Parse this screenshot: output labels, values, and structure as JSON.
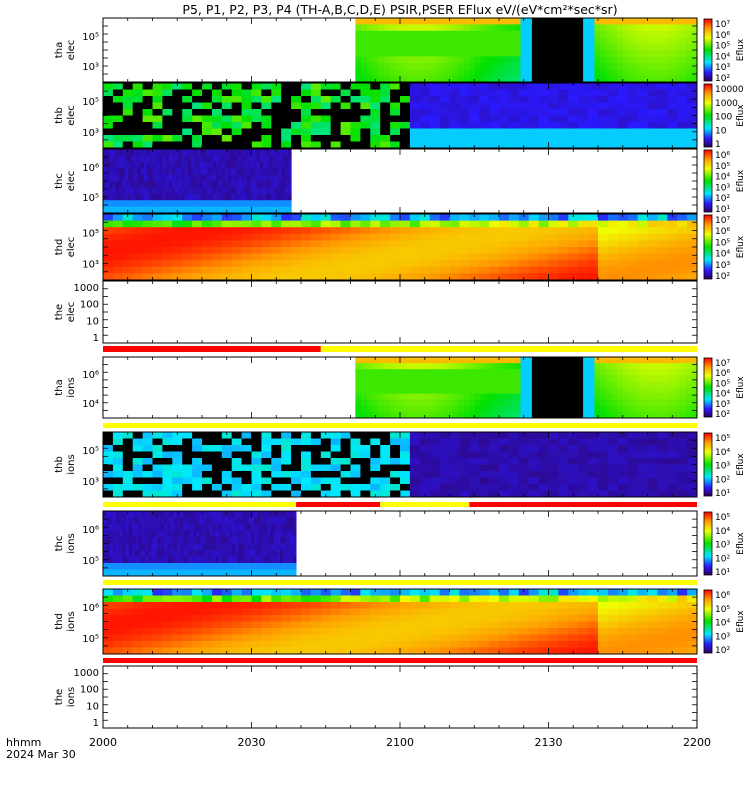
{
  "chart_data": {
    "type": "heatmap",
    "title": "P5, P1, P2, P3, P4 (TH-A,B,C,D,E) PSIR,PSER EFlux eV/(eV*cm²*sec*sr)",
    "time_axis": {
      "ticks": [
        "2000",
        "2030",
        "2100",
        "2130",
        "2200"
      ],
      "label_line1": "hhmm",
      "label_line2": "2024 Mar 30",
      "range": [
        "20:00",
        "22:00"
      ]
    },
    "panels": [
      {
        "id": "tha-elec",
        "probe": "tha",
        "species": "elec",
        "ylabel_line1": "tha",
        "ylabel_line2": "elec",
        "yticks": [
          "10⁵",
          "10³"
        ],
        "colorbar": {
          "ticks": [
            "10⁷",
            "10⁶",
            "10⁵",
            "10⁴",
            "10³",
            "10²"
          ],
          "label": "Eflux"
        },
        "data_start": "20:51",
        "data_end": "22:00",
        "gap": [
          "21:27",
          "21:36"
        ],
        "mode": "green-band"
      },
      {
        "id": "thb-elec",
        "probe": "thb",
        "species": "elec",
        "ylabel_line1": "thb",
        "ylabel_line2": "elec",
        "yticks": [
          "10⁵",
          "10³"
        ],
        "colorbar": {
          "ticks": [
            "10000",
            "1000",
            "100",
            "10",
            "1"
          ],
          "label": "Eflux"
        },
        "data_start": "20:00",
        "data_end": "22:00",
        "noisy_until": "21:01",
        "mode": "noisy-blue"
      },
      {
        "id": "thc-elec",
        "probe": "thc",
        "species": "elec",
        "ylabel_line1": "thc",
        "ylabel_line2": "elec",
        "yticks": [
          "10⁶",
          "10⁵"
        ],
        "colorbar": {
          "ticks": [
            "10⁶",
            "10⁵",
            "10⁴",
            "10³",
            "10²",
            "10¹"
          ],
          "label": "Eflux"
        },
        "data_start": "20:00",
        "data_end": "20:38",
        "mode": "dark-blue"
      },
      {
        "id": "thd-elec",
        "probe": "thd",
        "species": "elec",
        "ylabel_line1": "thd",
        "ylabel_line2": "elec",
        "yticks": [
          "10⁵",
          "10³"
        ],
        "colorbar": {
          "ticks": [
            "10⁷",
            "10⁶",
            "10⁵",
            "10⁴",
            "10³",
            "10²"
          ],
          "label": "Eflux"
        },
        "data_start": "20:00",
        "data_end": "22:00",
        "mode": "red-hot"
      },
      {
        "id": "the-elec",
        "probe": "the",
        "species": "elec",
        "ylabel_line1": "the",
        "ylabel_line2": "elec",
        "yticks": [
          "1000",
          "100",
          "10",
          "1"
        ],
        "colorbar": null,
        "mode": "empty"
      },
      {
        "id": "tha-ions",
        "probe": "tha",
        "species": "ions",
        "ylabel_line1": "tha",
        "ylabel_line2": "ions",
        "yticks": [
          "10⁶",
          "10⁴"
        ],
        "colorbar": {
          "ticks": [
            "10⁷",
            "10⁶",
            "10⁵",
            "10⁴",
            "10³",
            "10²"
          ],
          "label": "Eflux"
        },
        "data_start": "20:51",
        "data_end": "22:00",
        "gap": [
          "21:27",
          "21:36"
        ],
        "mode": "green-band"
      },
      {
        "id": "thb-ions",
        "probe": "thb",
        "species": "ions",
        "ylabel_line1": "thb",
        "ylabel_line2": "ions",
        "yticks": [
          "10⁵",
          "10³"
        ],
        "colorbar": {
          "ticks": [
            "10⁵",
            "10⁴",
            "10³",
            "10²",
            "10¹"
          ],
          "label": "Eflux"
        },
        "data_start": "20:00",
        "data_end": "22:00",
        "noisy_until": "21:01",
        "mode": "noisy-cyan"
      },
      {
        "id": "thc-ions",
        "probe": "thc",
        "species": "ions",
        "ylabel_line1": "thc",
        "ylabel_line2": "ions",
        "yticks": [
          "10⁶",
          "10⁵"
        ],
        "colorbar": {
          "ticks": [
            "10⁵",
            "10⁴",
            "10³",
            "10²",
            "10¹"
          ],
          "label": "Eflux"
        },
        "data_start": "20:00",
        "data_end": "20:39",
        "mode": "dark-blue"
      },
      {
        "id": "thd-ions",
        "probe": "thd",
        "species": "ions",
        "ylabel_line1": "thd",
        "ylabel_line2": "ions",
        "yticks": [
          "10⁶",
          "10⁵"
        ],
        "colorbar": {
          "ticks": [
            "10⁶",
            "10⁵",
            "10⁴",
            "10³",
            "10²"
          ],
          "label": "Eflux"
        },
        "data_start": "20:00",
        "data_end": "22:00",
        "mode": "red-hot"
      },
      {
        "id": "the-ions",
        "probe": "the",
        "species": "ions",
        "ylabel_line1": "the",
        "ylabel_line2": "ions",
        "yticks": [
          "1000",
          "100",
          "10",
          "1"
        ],
        "colorbar": null,
        "mode": "empty"
      }
    ],
    "status_bars": [
      {
        "after": "the-elec",
        "segments": [
          {
            "from": "20:00",
            "to": "20:44",
            "color": "#ff0000"
          },
          {
            "from": "20:44",
            "to": "22:00",
            "color": "#ffff00"
          }
        ]
      },
      {
        "after": "tha-ions",
        "segments": [
          {
            "from": "20:00",
            "to": "22:00",
            "color": "#ffff00"
          }
        ]
      },
      {
        "after": "thb-ions",
        "segments": [
          {
            "from": "20:00",
            "to": "20:39",
            "color": "#ffff00"
          },
          {
            "from": "20:39",
            "to": "20:56",
            "color": "#ff0000"
          },
          {
            "from": "20:56",
            "to": "21:14",
            "color": "#ffff00"
          },
          {
            "from": "21:14",
            "to": "22:00",
            "color": "#ff0000"
          }
        ]
      },
      {
        "after": "thc-ions",
        "segments": [
          {
            "from": "20:00",
            "to": "22:00",
            "color": "#ffff00"
          }
        ]
      },
      {
        "after": "thd-ions",
        "segments": [
          {
            "from": "20:00",
            "to": "22:00",
            "color": "#ff0000"
          }
        ]
      }
    ]
  }
}
